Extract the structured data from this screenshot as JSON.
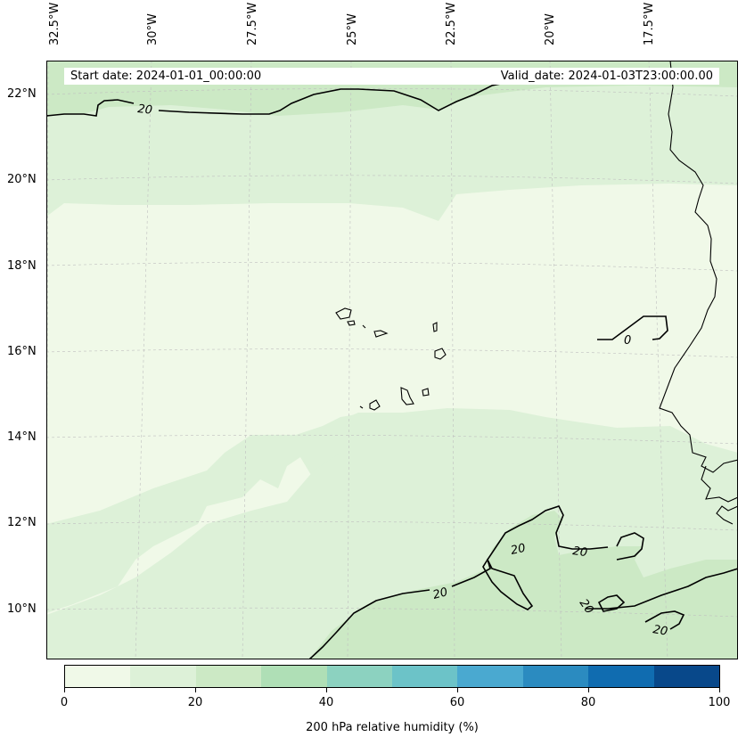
{
  "map": {
    "lon_ticks": [
      "32.5°W",
      "30°W",
      "27.5°W",
      "25°W",
      "22.5°W",
      "20°W",
      "17.5°W"
    ],
    "lat_ticks": [
      "22°N",
      "20°N",
      "18°N",
      "16°N",
      "14°N",
      "12°N",
      "10°N"
    ],
    "start_date": "Start date: 2024-01-01_00:00:00",
    "valid_date": "Valid_date: 2024-01-03T23:00:00.00",
    "contour_labels": [
      "20",
      "0",
      "20",
      "20",
      "20",
      "20",
      "20"
    ],
    "fill_colors": {
      "0_10": "#f0f9e8",
      "10_20": "#ddf1d8",
      "20_30": "#cce9c5"
    }
  },
  "colorbar": {
    "label": "200 hPa relative humidity (%)",
    "ticks": [
      "0",
      "20",
      "40",
      "60",
      "80",
      "100"
    ],
    "colors": [
      "#f0f9e8",
      "#ddf1d8",
      "#cce9c5",
      "#afdfb6",
      "#8cd2c0",
      "#6cc3c8",
      "#4aa9d0",
      "#2b8bc0",
      "#106cb0",
      "#08488a"
    ]
  }
}
